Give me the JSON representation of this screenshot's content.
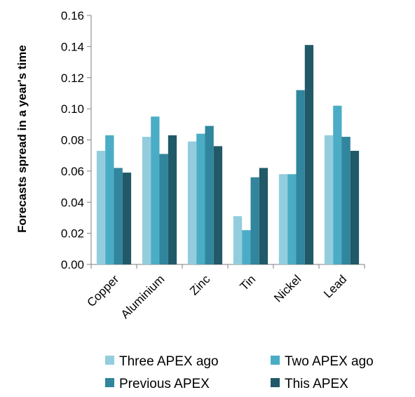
{
  "chart_data": {
    "type": "bar",
    "ylabel": "Forecasts spread in a year's time",
    "xlabel": "",
    "ylim": [
      0,
      0.16
    ],
    "y_ticks": [
      "0.00",
      "0.02",
      "0.04",
      "0.06",
      "0.08",
      "0.10",
      "0.12",
      "0.14",
      "0.16"
    ],
    "categories": [
      "Copper",
      "Aluminium",
      "Zinc",
      "Tin",
      "Nickel",
      "Lead"
    ],
    "series": [
      {
        "name": "Three APEX ago",
        "color": "#93CDDD",
        "values": [
          0.073,
          0.082,
          0.079,
          0.031,
          0.058,
          0.083
        ]
      },
      {
        "name": "Two APEX ago",
        "color": "#4BACC6",
        "values": [
          0.083,
          0.095,
          0.084,
          0.022,
          0.058,
          0.102
        ]
      },
      {
        "name": "Previous APEX",
        "color": "#31859C",
        "values": [
          0.062,
          0.071,
          0.089,
          0.056,
          0.112,
          0.082
        ]
      },
      {
        "name": "This APEX",
        "color": "#215968",
        "values": [
          0.059,
          0.083,
          0.076,
          0.062,
          0.141,
          0.073
        ]
      }
    ],
    "legend_position": "bottom",
    "grid": false
  }
}
